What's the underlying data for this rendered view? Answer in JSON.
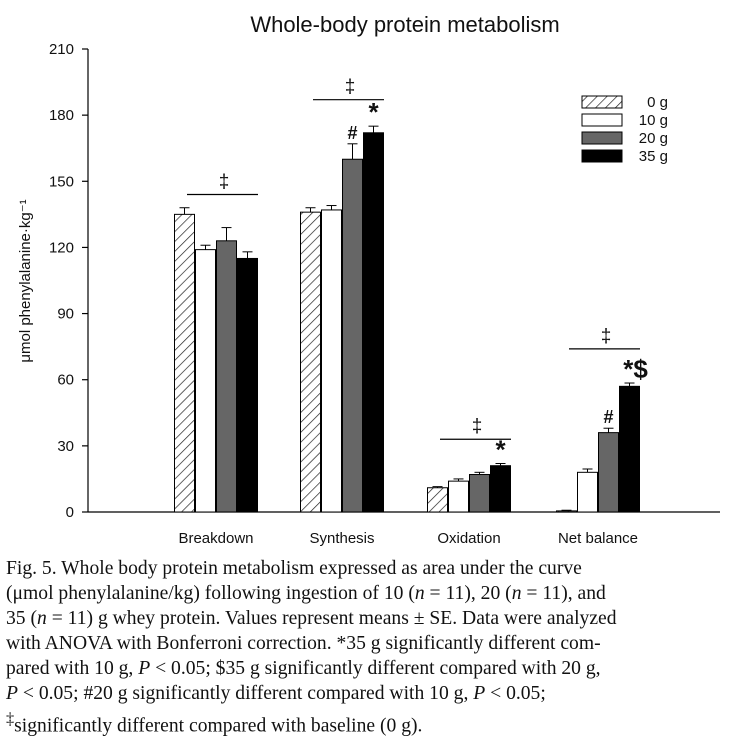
{
  "chart_data": {
    "type": "bar",
    "title": "Whole-body protein metabolism",
    "ylabel": "μmol phenylalanine·kg⁻¹",
    "xlabel": "",
    "ylim": [
      0,
      210
    ],
    "yticks": [
      "0",
      "30",
      "60",
      "90",
      "120",
      "150",
      "180",
      "210"
    ],
    "categories": [
      "Breakdown",
      "Synthesis",
      "Oxidation",
      "Net balance"
    ],
    "legend_position": "top-right",
    "grid": false,
    "series": [
      {
        "name": "0 g",
        "pattern": "hatch",
        "color": "#ffffff",
        "values": [
          135,
          136,
          11,
          0.5
        ],
        "errors": [
          3,
          2,
          0.5,
          0.3
        ]
      },
      {
        "name": "10 g",
        "pattern": "solid",
        "color": "#ffffff",
        "values": [
          119,
          137,
          14,
          18
        ],
        "errors": [
          2,
          2,
          1,
          1.5
        ]
      },
      {
        "name": "20 g",
        "pattern": "solid",
        "color": "#666666",
        "values": [
          123,
          160,
          17,
          36
        ],
        "errors": [
          6,
          7,
          1,
          2
        ]
      },
      {
        "name": "35 g",
        "pattern": "solid",
        "color": "#000000",
        "values": [
          115,
          172,
          21,
          57
        ],
        "errors": [
          3,
          3,
          1,
          1.5
        ]
      }
    ],
    "brackets": [
      {
        "category": 0,
        "label": "‡",
        "y": 144
      },
      {
        "category": 1,
        "label": "‡",
        "y": 187
      },
      {
        "category": 2,
        "label": "‡",
        "y": 33
      },
      {
        "category": 3,
        "label": "‡",
        "y": 74
      }
    ],
    "annotations": [
      {
        "category": 1,
        "series": 2,
        "label": "#"
      },
      {
        "category": 1,
        "series": 3,
        "label": "*"
      },
      {
        "category": 2,
        "series": 3,
        "label": "*"
      },
      {
        "category": 3,
        "series": 2,
        "label": "#"
      },
      {
        "category": 3,
        "series": 3,
        "label": "*$"
      }
    ]
  },
  "caption": {
    "lines": [
      "Fig. 5. Whole body protein metabolism expressed as area under the curve",
      "(μmol phenylalanine/kg) following ingestion of 10 (<i>n</i> = 11), 20 (<i>n</i> = 11), and",
      "35 (<i>n</i> = 11) g whey protein. Values represent means ± SE. Data were analyzed",
      "with ANOVA with Bonferroni correction. *35 g significantly different com-",
      "pared with 10 g, <i>P</i> &lt; 0.05; $35 g significantly different compared with 20 g,",
      "<i>P</i> &lt; 0.05; #20 g significantly different compared with 10 g, <i>P</i> &lt; 0.05;",
      "<sup>‡</sup>significantly different compared with baseline (0 g)."
    ]
  }
}
